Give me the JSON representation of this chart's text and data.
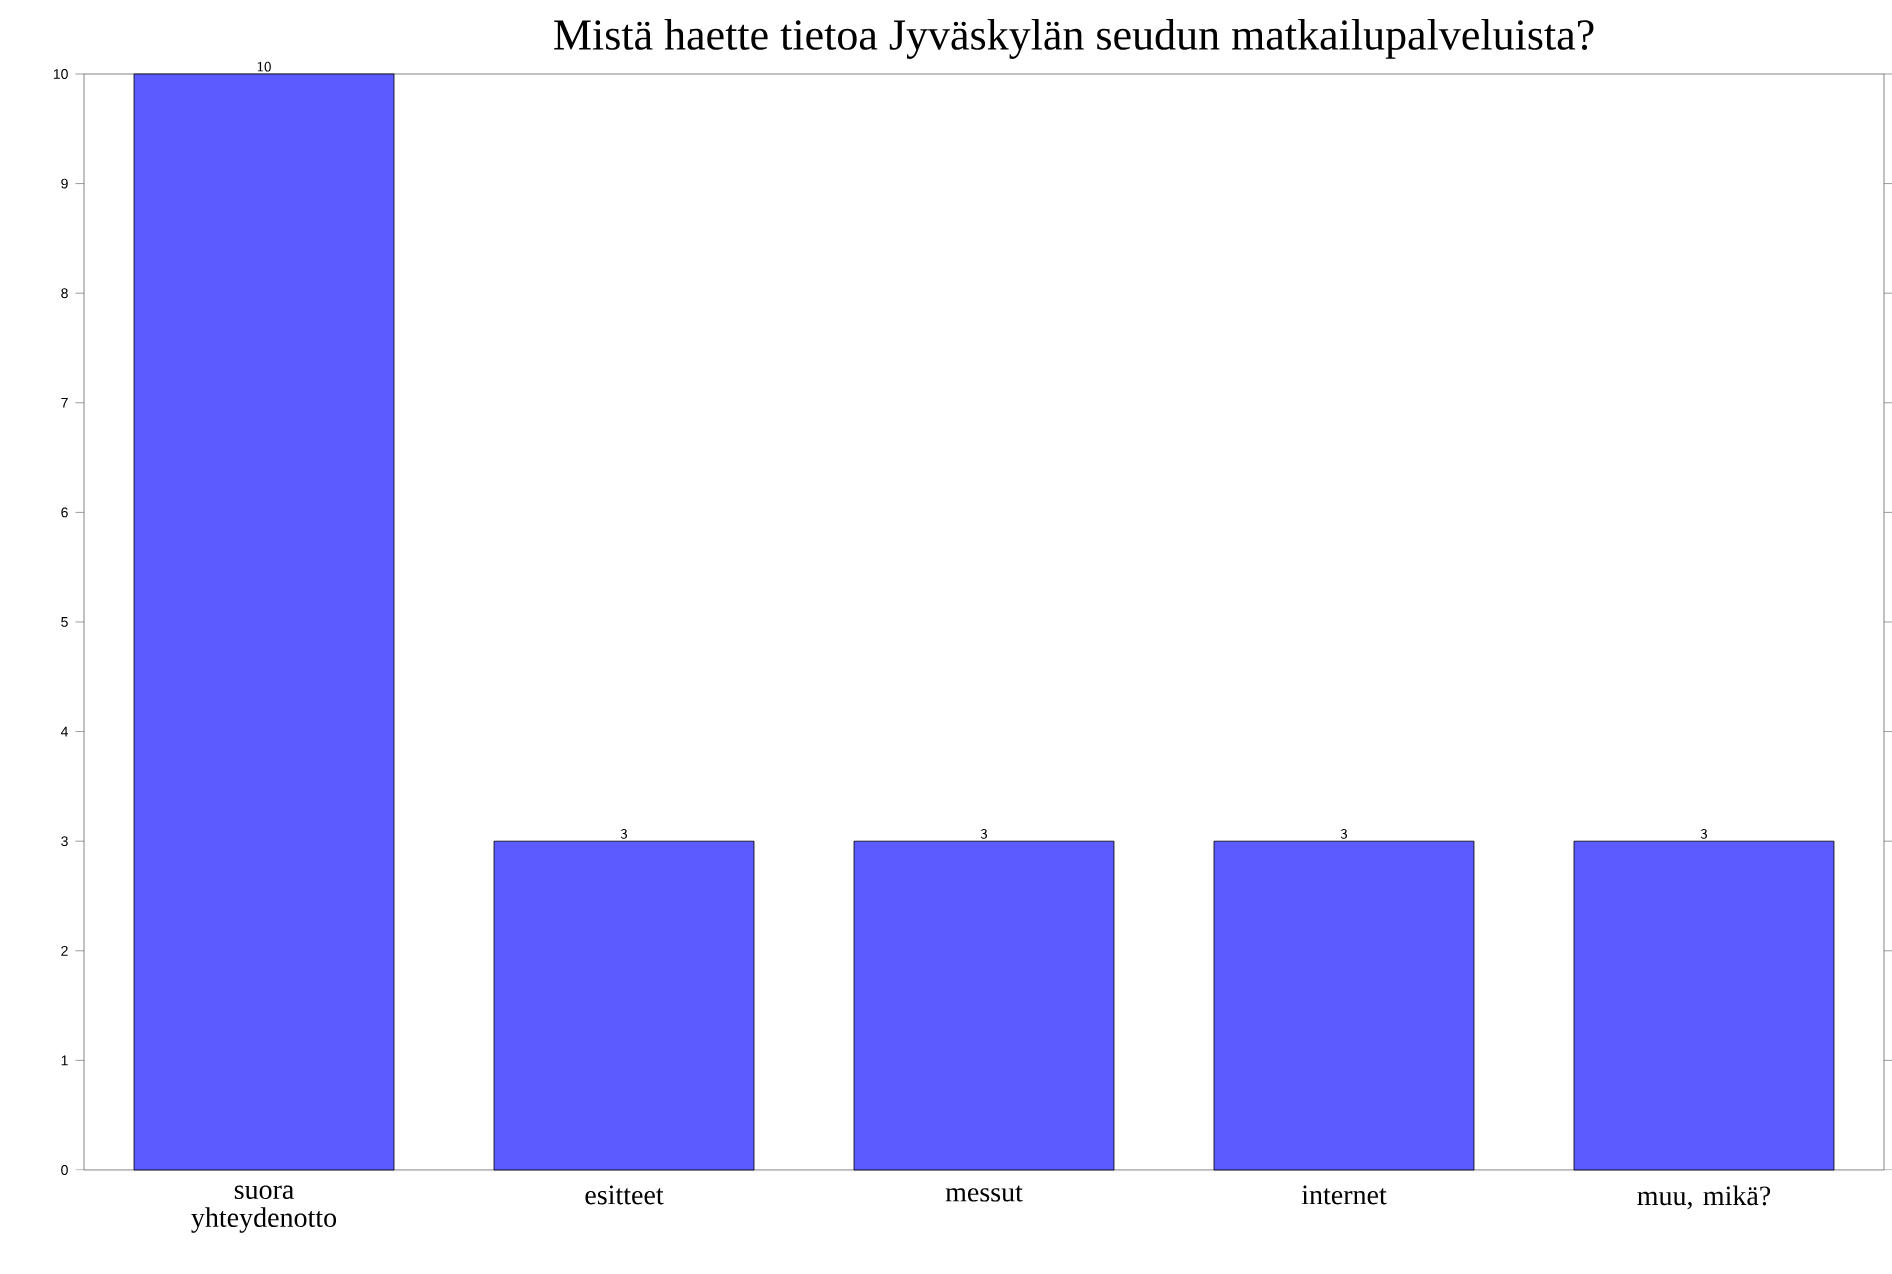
{
  "chart_data": {
    "type": "bar",
    "title": "Mistä haette tietoa Jyväskylän seudun matkailupalveluista?",
    "categories": [
      "suora yhteydenotto",
      "esitteet",
      "messut",
      "internet",
      "muu, mikä?"
    ],
    "values": [
      10,
      3,
      3,
      3,
      3
    ],
    "color": "#5b5bff",
    "data_labels": true,
    "ylim": [
      0,
      10
    ],
    "yticks": [
      0,
      1,
      2,
      3,
      4,
      5,
      6,
      7,
      8,
      9,
      10
    ],
    "grid": false
  }
}
